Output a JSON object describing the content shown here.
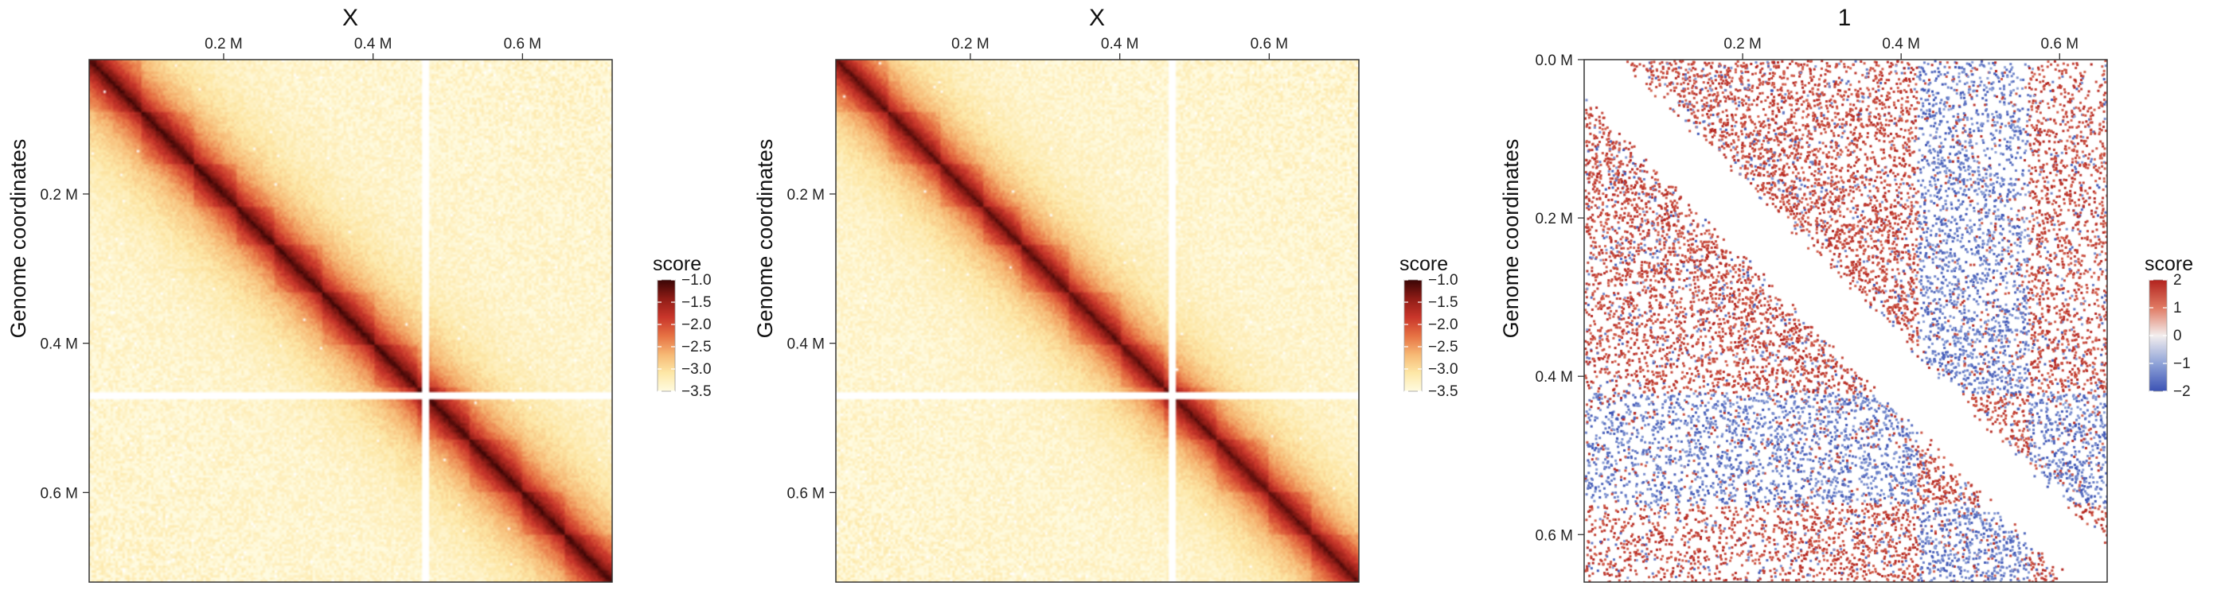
{
  "chart_data": [
    {
      "type": "heatmap",
      "title": "X",
      "xlabel": "",
      "ylabel": "Genome coordinates",
      "x_ticks": [
        {
          "value": 200000,
          "label": "0.2 M"
        },
        {
          "value": 400000,
          "label": "0.4 M"
        },
        {
          "value": 600000,
          "label": "0.6 M"
        }
      ],
      "y_ticks": [
        {
          "value": 200000,
          "label": "0.2 M"
        },
        {
          "value": 400000,
          "label": "0.4 M"
        },
        {
          "value": 600000,
          "label": "0.6 M"
        }
      ],
      "xlim": [
        20000,
        720000
      ],
      "ylim": [
        20000,
        720000
      ],
      "scale": {
        "title": "score",
        "range": [
          -3.5,
          -1.0
        ],
        "ticks": [
          -1.0,
          -1.5,
          -2.0,
          -2.5,
          -3.0,
          -3.5
        ],
        "tick_labels": [
          "−1.0",
          "−1.5",
          "−2.0",
          "−2.5",
          "−3.0",
          "−3.5"
        ],
        "colors": [
          "#fffbe0",
          "#fde7a6",
          "#f6b773",
          "#e67143",
          "#c8352a",
          "#8e1c16",
          "#3a0505"
        ]
      },
      "masked_positions": [
        470000
      ],
      "diagonal_profile": {
        "peak": -1.3,
        "background": -3.4,
        "decay": 0.14
      }
    },
    {
      "type": "heatmap",
      "title": "X",
      "xlabel": "",
      "ylabel": "Genome coordinates",
      "x_ticks": [
        {
          "value": 200000,
          "label": "0.2 M"
        },
        {
          "value": 400000,
          "label": "0.4 M"
        },
        {
          "value": 600000,
          "label": "0.6 M"
        }
      ],
      "y_ticks": [
        {
          "value": 200000,
          "label": "0.2 M"
        },
        {
          "value": 400000,
          "label": "0.4 M"
        },
        {
          "value": 600000,
          "label": "0.6 M"
        }
      ],
      "xlim": [
        20000,
        720000
      ],
      "ylim": [
        20000,
        720000
      ],
      "scale": {
        "title": "score",
        "range": [
          -3.5,
          -1.0
        ],
        "ticks": [
          -1.0,
          -1.5,
          -2.0,
          -2.5,
          -3.0,
          -3.5
        ],
        "tick_labels": [
          "−1.0",
          "−1.5",
          "−2.0",
          "−2.5",
          "−3.0",
          "−3.5"
        ],
        "colors": [
          "#fffbe0",
          "#fde7a6",
          "#f6b773",
          "#e67143",
          "#c8352a",
          "#8e1c16",
          "#3a0505"
        ]
      },
      "masked_positions": [
        470000
      ],
      "diagonal_profile": {
        "peak": -1.4,
        "background": -3.4,
        "decay": 0.13
      }
    },
    {
      "type": "heatmap",
      "title": "1",
      "xlabel": "",
      "ylabel": "Genome coordinates",
      "x_ticks": [
        {
          "value": 200000,
          "label": "0.2 M"
        },
        {
          "value": 400000,
          "label": "0.4 M"
        },
        {
          "value": 600000,
          "label": "0.6 M"
        }
      ],
      "y_ticks": [
        {
          "value": 0,
          "label": "0.0 M"
        },
        {
          "value": 200000,
          "label": "0.2 M"
        },
        {
          "value": 400000,
          "label": "0.4 M"
        },
        {
          "value": 600000,
          "label": "0.6 M"
        }
      ],
      "xlim": [
        0,
        660000
      ],
      "ylim": [
        0,
        660000
      ],
      "scale": {
        "title": "score",
        "range": [
          -2,
          2
        ],
        "ticks": [
          2,
          1,
          0,
          -1,
          -2
        ],
        "tick_labels": [
          "2",
          "1",
          "0",
          "−1",
          "−2"
        ],
        "colors": [
          "#3b52b4",
          "#8fa3d8",
          "#f3eeee",
          "#e07a63",
          "#b2221d"
        ]
      },
      "compartments": [
        {
          "from": 0,
          "to": 140000,
          "sign": 1
        },
        {
          "from": 140000,
          "to": 420000,
          "sign": 1
        },
        {
          "from": 420000,
          "to": 560000,
          "sign": -1
        },
        {
          "from": 560000,
          "to": 660000,
          "sign": 1
        }
      ]
    }
  ]
}
